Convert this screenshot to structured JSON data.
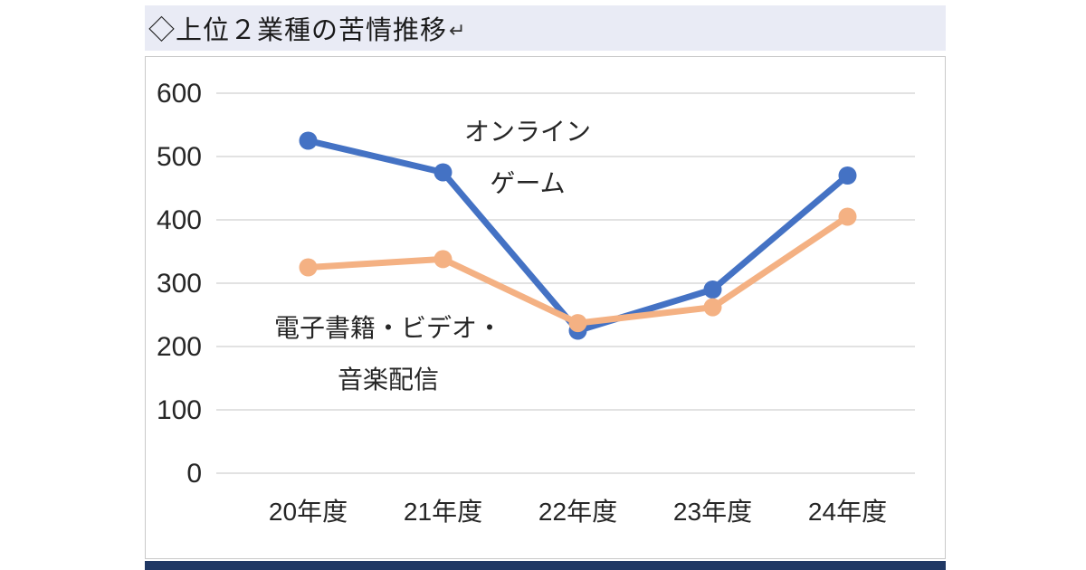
{
  "header": {
    "title": "◇上位２業種の苦情推移",
    "return_mark": "↵"
  },
  "chart_data": {
    "type": "line",
    "title": "上位２業種の苦情推移",
    "categories": [
      "20年度",
      "21年度",
      "22年度",
      "23年度",
      "24年度"
    ],
    "series": [
      {
        "name": "オンラインゲーム",
        "color": "#4472c4",
        "values": [
          525,
          475,
          225,
          290,
          470
        ]
      },
      {
        "name": "電子書籍・ビデオ・音楽配信",
        "color": "#f4b183",
        "values": [
          325,
          338,
          237,
          262,
          405
        ]
      }
    ],
    "ylim": [
      0,
      600
    ],
    "ytick_step": 100,
    "grid": true,
    "legend": "none",
    "annotations": [
      {
        "series": "オンラインゲーム",
        "lines": [
          "オンライン",
          "ゲーム"
        ]
      },
      {
        "series": "電子書籍・ビデオ・音楽配信",
        "lines": [
          "電子書籍・ビデオ・",
          "音楽配信"
        ]
      }
    ]
  },
  "colors": {
    "title_bar_bg": "#e9ebf5",
    "bottom_bar": "#203864",
    "gridline": "#d9d9d9",
    "axis_text": "#262626",
    "chart_border": "#c9c9c9"
  }
}
